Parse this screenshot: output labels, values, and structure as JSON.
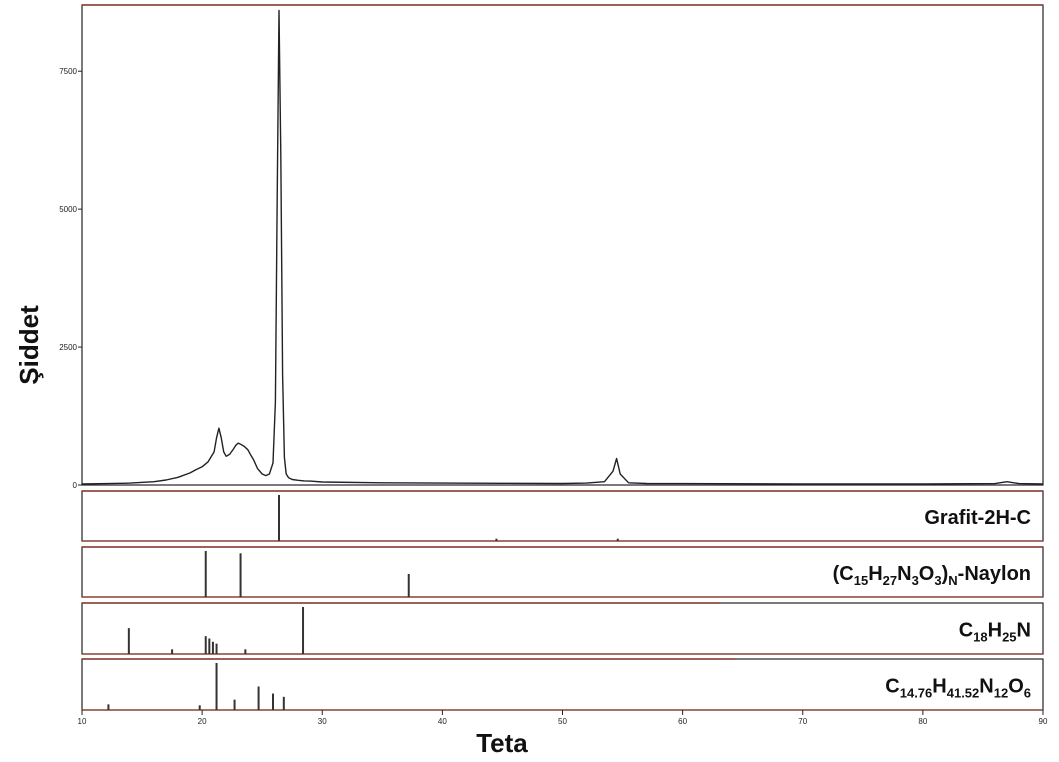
{
  "chart_data": {
    "type": "line",
    "xlabel": "Teta",
    "ylabel": "Şiddet",
    "xlim": [
      10,
      90
    ],
    "ylim": [
      0,
      8700
    ],
    "x_ticks": [
      10,
      20,
      30,
      40,
      50,
      60,
      70,
      80,
      90
    ],
    "y_ticks": [
      0,
      2500,
      5000,
      7500
    ],
    "y_tick_labels": [
      "0",
      "2500",
      "5000",
      "7500"
    ],
    "line_color": "#222222",
    "frame_color": "#8b3a2a",
    "series": [
      {
        "x": [
          10,
          12,
          14,
          16,
          17,
          18,
          19,
          19.5,
          20,
          20.5,
          21,
          21.2,
          21.4,
          21.6,
          21.8,
          22,
          22.3,
          22.6,
          22.8,
          23,
          23.2,
          23.5,
          23.8,
          24,
          24.3,
          24.6,
          25,
          25.3,
          25.6,
          25.9,
          26.1,
          26.25,
          26.4,
          26.55,
          26.7,
          26.85,
          27,
          27.2,
          27.5,
          28,
          28.5,
          29,
          30,
          35,
          40,
          45,
          50,
          52,
          53.5,
          54.2,
          54.5,
          54.8,
          55.5,
          57,
          60,
          70,
          80,
          86,
          87,
          88,
          90
        ],
        "y": [
          20,
          25,
          35,
          60,
          90,
          140,
          220,
          280,
          330,
          420,
          600,
          850,
          1030,
          850,
          600,
          520,
          560,
          650,
          720,
          760,
          740,
          700,
          640,
          560,
          450,
          300,
          200,
          170,
          200,
          400,
          1500,
          5200,
          8600,
          6000,
          2000,
          500,
          200,
          130,
          100,
          85,
          75,
          70,
          55,
          40,
          35,
          30,
          28,
          35,
          60,
          250,
          480,
          200,
          40,
          28,
          25,
          20,
          20,
          25,
          60,
          25,
          20
        ]
      }
    ],
    "reference_panels": [
      {
        "label_parts": [
          {
            "text": "Grafit-2H-C",
            "sub": false
          }
        ],
        "peaks": [
          {
            "x": 26.4,
            "h": 1.0
          },
          {
            "x": 44.5,
            "h": 0.05
          },
          {
            "x": 54.6,
            "h": 0.05
          }
        ]
      },
      {
        "label_parts": [
          {
            "text": "(C",
            "sub": false
          },
          {
            "text": "15",
            "sub": true
          },
          {
            "text": "H",
            "sub": false
          },
          {
            "text": "27",
            "sub": true
          },
          {
            "text": "N",
            "sub": false
          },
          {
            "text": "3",
            "sub": true
          },
          {
            "text": "O",
            "sub": false
          },
          {
            "text": "3",
            "sub": true
          },
          {
            "text": ")",
            "sub": false
          },
          {
            "text": "N",
            "sub": true
          },
          {
            "text": "-Naylon",
            "sub": false
          }
        ],
        "peaks": [
          {
            "x": 20.3,
            "h": 1.0
          },
          {
            "x": 23.2,
            "h": 0.95
          },
          {
            "x": 37.2,
            "h": 0.5
          }
        ]
      },
      {
        "label_parts": [
          {
            "text": "C",
            "sub": false
          },
          {
            "text": "18",
            "sub": true
          },
          {
            "text": "H",
            "sub": false
          },
          {
            "text": "25",
            "sub": true
          },
          {
            "text": "N",
            "sub": false
          }
        ],
        "peaks": [
          {
            "x": 13.9,
            "h": 0.55
          },
          {
            "x": 17.5,
            "h": 0.1
          },
          {
            "x": 20.3,
            "h": 0.38
          },
          {
            "x": 20.6,
            "h": 0.33
          },
          {
            "x": 20.9,
            "h": 0.26
          },
          {
            "x": 21.2,
            "h": 0.22
          },
          {
            "x": 23.6,
            "h": 0.1
          },
          {
            "x": 28.4,
            "h": 1.0
          }
        ]
      },
      {
        "label_parts": [
          {
            "text": "C",
            "sub": false
          },
          {
            "text": "14.76",
            "sub": true
          },
          {
            "text": "H",
            "sub": false
          },
          {
            "text": "41.52",
            "sub": true
          },
          {
            "text": "N",
            "sub": false
          },
          {
            "text": "12",
            "sub": true
          },
          {
            "text": "O",
            "sub": false
          },
          {
            "text": "6",
            "sub": true
          }
        ],
        "peaks": [
          {
            "x": 12.2,
            "h": 0.12
          },
          {
            "x": 19.8,
            "h": 0.1
          },
          {
            "x": 21.2,
            "h": 1.0
          },
          {
            "x": 22.7,
            "h": 0.22
          },
          {
            "x": 24.7,
            "h": 0.5
          },
          {
            "x": 25.9,
            "h": 0.35
          },
          {
            "x": 26.8,
            "h": 0.28
          }
        ]
      }
    ]
  }
}
